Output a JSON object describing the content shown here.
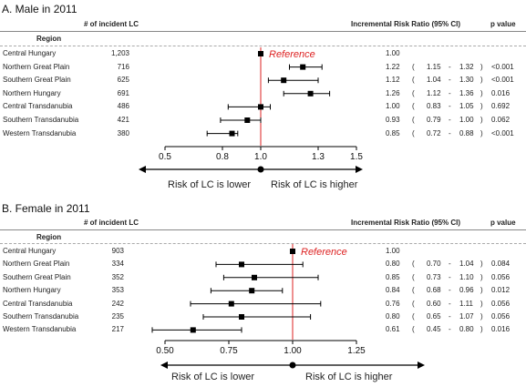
{
  "panels": [
    {
      "title": "A. Male in 2011",
      "headers": {
        "incident": "# of incident LC",
        "irr": "Incremental Risk Ratio (95% CI)",
        "pvalue": "p value",
        "region": "Region"
      },
      "reference_label": "Reference",
      "risk_lower": "Risk of LC is lower",
      "risk_higher": "Risk of LC is higher",
      "rows": [
        {
          "region": "Central Hungary",
          "count": "1,203",
          "irr": "1.00",
          "lo": "",
          "hi": "",
          "p": "",
          "ref": true
        },
        {
          "region": "Northern Great Plain",
          "count": "716",
          "irr": "1.22",
          "lo": "1.15",
          "hi": "1.32",
          "p": "<0.001"
        },
        {
          "region": "Southern Great Plain",
          "count": "625",
          "irr": "1.12",
          "lo": "1.04",
          "hi": "1.30",
          "p": "<0.001"
        },
        {
          "region": "Northern Hungary",
          "count": "691",
          "irr": "1.26",
          "lo": "1.12",
          "hi": "1.36",
          "p": "0.016"
        },
        {
          "region": "Central Transdanubia",
          "count": "486",
          "irr": "1.00",
          "lo": "0.83",
          "hi": "1.05",
          "p": "0.692"
        },
        {
          "region": "Southern Transdanubia",
          "count": "421",
          "irr": "0.93",
          "lo": "0.79",
          "hi": "1.00",
          "p": "0.062"
        },
        {
          "region": "Western Transdanubia",
          "count": "380",
          "irr": "0.85",
          "lo": "0.72",
          "hi": "0.88",
          "p": "<0.001"
        }
      ]
    },
    {
      "title": "B. Female in 2011",
      "headers": {
        "incident": "# of incident LC",
        "irr": "Incremental Risk Ratio (95% CI)",
        "pvalue": "p value",
        "region": "Region"
      },
      "reference_label": "Reference",
      "risk_lower": "Risk of LC is lower",
      "risk_higher": "Risk of LC is higher",
      "rows": [
        {
          "region": "Central Hungary",
          "count": "903",
          "irr": "1.00",
          "lo": "",
          "hi": "",
          "p": "",
          "ref": true
        },
        {
          "region": "Northern Great Plain",
          "count": "334",
          "irr": "0.80",
          "lo": "0.70",
          "hi": "1.04",
          "p": "0.084"
        },
        {
          "region": "Southern Great Plain",
          "count": "352",
          "irr": "0.85",
          "lo": "0.73",
          "hi": "1.10",
          "p": "0.056"
        },
        {
          "region": "Northern Hungary",
          "count": "353",
          "irr": "0.84",
          "lo": "0.68",
          "hi": "0.96",
          "p": "0.012"
        },
        {
          "region": "Central Transdanubia",
          "count": "242",
          "irr": "0.76",
          "lo": "0.60",
          "hi": "1.11",
          "p": "0.056"
        },
        {
          "region": "Southern Transdanubia",
          "count": "235",
          "irr": "0.80",
          "lo": "0.65",
          "hi": "1.07",
          "p": "0.056"
        },
        {
          "region": "Western Transdanubia",
          "count": "217",
          "irr": "0.61",
          "lo": "0.45",
          "hi": "0.80",
          "p": "0.016"
        }
      ]
    }
  ],
  "chart_data": [
    {
      "type": "scatter",
      "title": "A. Male in 2011",
      "xlabel": "",
      "ylabel": "",
      "xlim": [
        0.5,
        1.5
      ],
      "xticks": [
        "0.5",
        "0.8",
        "1.0",
        "1.3",
        "1.5"
      ],
      "reference_line": 1.0,
      "categories": [
        "Central Hungary",
        "Northern Great Plain",
        "Southern Great Plain",
        "Northern Hungary",
        "Central Transdanubia",
        "Southern Transdanubia",
        "Western Transdanubia"
      ],
      "values": [
        1.0,
        1.22,
        1.12,
        1.26,
        1.0,
        0.93,
        0.85
      ],
      "ci_lower": [
        null,
        1.15,
        1.04,
        1.12,
        0.83,
        0.79,
        0.72
      ],
      "ci_upper": [
        null,
        1.32,
        1.3,
        1.36,
        1.05,
        1.0,
        0.88
      ],
      "grid": false
    },
    {
      "type": "scatter",
      "title": "B. Female in 2011",
      "xlabel": "",
      "ylabel": "",
      "xlim": [
        0.5,
        1.25
      ],
      "xticks": [
        "0.50",
        "0.75",
        "1.00",
        "1.25"
      ],
      "reference_line": 1.0,
      "categories": [
        "Central Hungary",
        "Northern Great Plain",
        "Southern Great Plain",
        "Northern Hungary",
        "Central Transdanubia",
        "Southern Transdanubia",
        "Western Transdanubia"
      ],
      "values": [
        1.0,
        0.8,
        0.85,
        0.84,
        0.76,
        0.8,
        0.61
      ],
      "ci_lower": [
        null,
        0.7,
        0.73,
        0.68,
        0.6,
        0.65,
        0.45
      ],
      "ci_upper": [
        null,
        1.04,
        1.1,
        0.96,
        1.11,
        1.07,
        0.8
      ],
      "grid": false
    }
  ]
}
